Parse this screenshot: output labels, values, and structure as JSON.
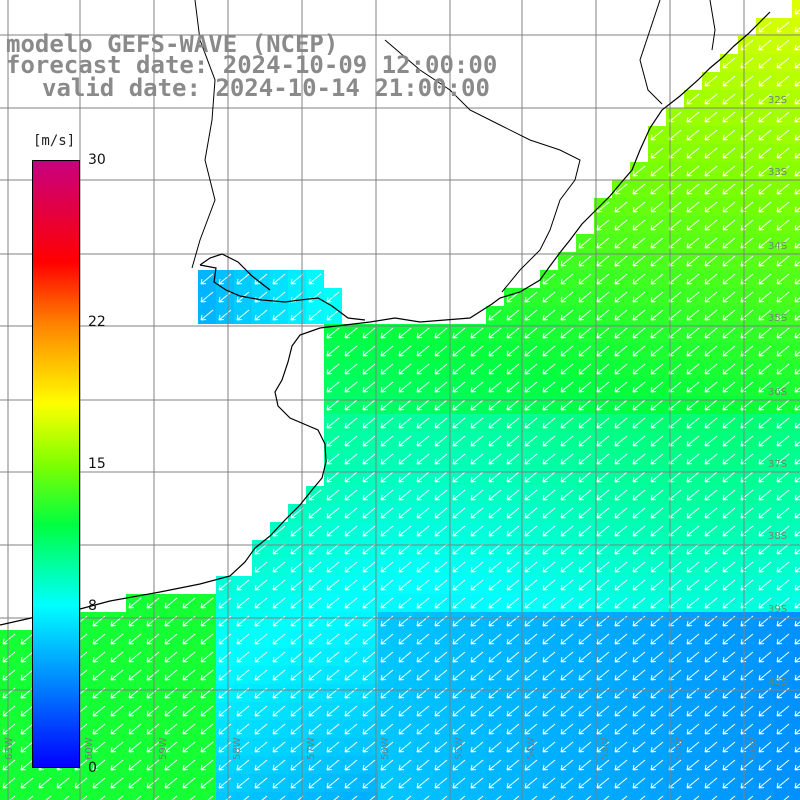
{
  "header": {
    "line1": "modelo GEFS-WAVE (NCEP)",
    "line2": "forecast date: 2024-10-09 12:00:00",
    "line3": "valid date: 2024-10-14 21:00:00"
  },
  "colorbar": {
    "unit": "[m/s]",
    "min": 0,
    "max": 30,
    "ticks": [
      {
        "label": "30",
        "value": 30
      },
      {
        "label": "22",
        "value": 22
      },
      {
        "label": "15",
        "value": 15
      },
      {
        "label": "8",
        "value": 8
      },
      {
        "label": "0",
        "value": 0
      }
    ]
  },
  "axes": {
    "lon_labels": [
      "63W",
      "60W",
      "59W",
      "58W",
      "57W",
      "56W",
      "55W",
      "54W",
      "53W",
      "52W",
      "51W"
    ],
    "lat_labels": [
      "32S",
      "33S",
      "34S",
      "35S",
      "36S",
      "37S",
      "38S",
      "39S",
      "40S"
    ]
  },
  "field": {
    "quantity": "wind speed",
    "arrow_direction": "towards southwest",
    "colors": {
      "land": "#ffffff",
      "coast": "#000000",
      "grid": "#808080",
      "arrow": "#ffffff"
    }
  }
}
